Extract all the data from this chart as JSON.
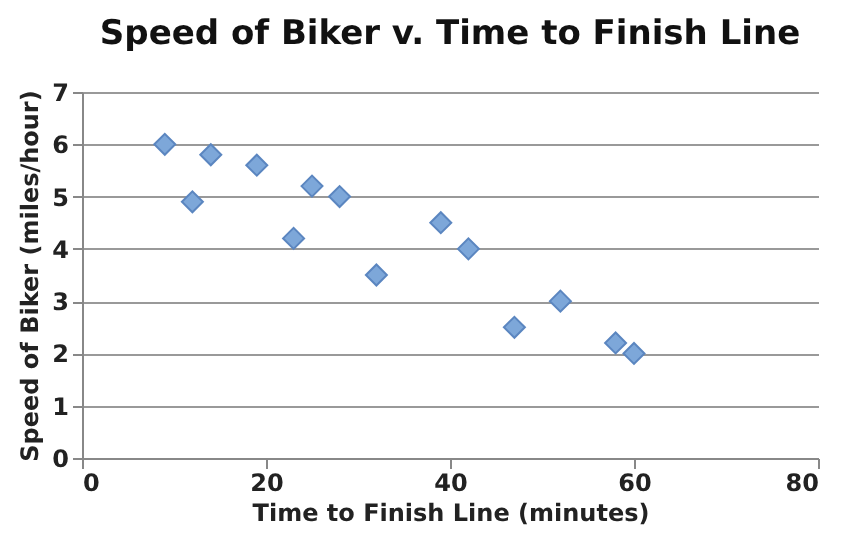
{
  "chart_data": {
    "type": "scatter",
    "title": "Speed of Biker v. Time to Finish Line",
    "xlabel": "Time to Finish Line (minutes)",
    "ylabel": "Speed of Biker (miles/hour)",
    "x": [
      9,
      12,
      14,
      19,
      23,
      25,
      28,
      32,
      39,
      42,
      47,
      52,
      58,
      60
    ],
    "series": [
      {
        "color": "#7da7d9",
        "values": [
          6,
          4.9,
          5.8,
          5.6,
          4.2,
          5.2,
          5,
          3.5,
          4.5,
          4,
          2.5,
          3,
          2.2,
          2
        ]
      }
    ],
    "xlim": [
      0,
      80
    ],
    "xticks": [
      0,
      20,
      40,
      60,
      80
    ],
    "ylim": [
      0,
      7
    ],
    "yticks": [
      0,
      1,
      2,
      3,
      4,
      5,
      6,
      7
    ],
    "grid": "y",
    "marker": "diamond",
    "legend": false
  }
}
